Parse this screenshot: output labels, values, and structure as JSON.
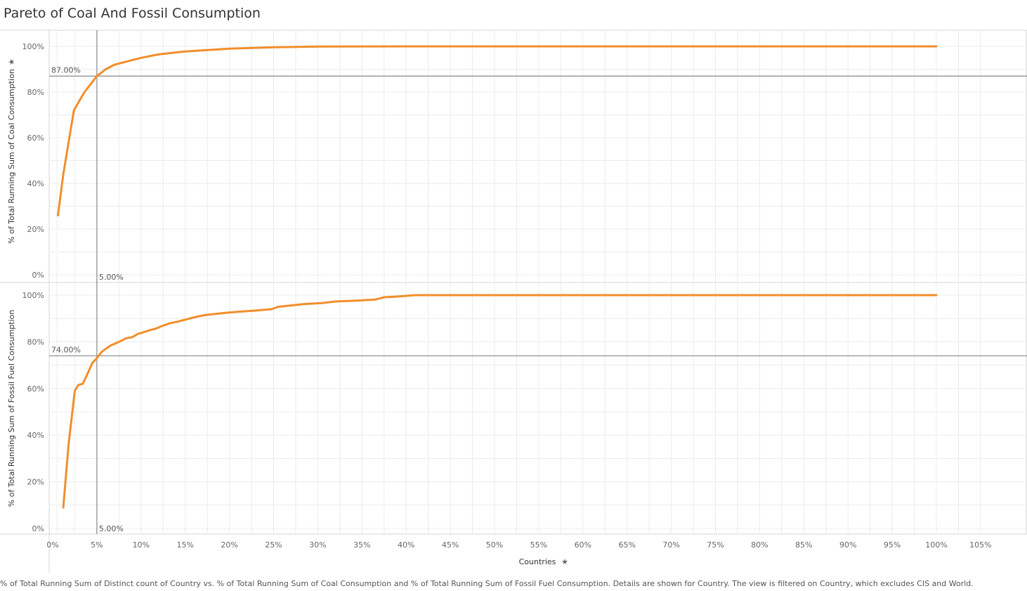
{
  "title": "Pareto of Coal And Fossil Consumption",
  "caption": "% of Total Running Sum of Distinct count of Country vs. % of Total Running Sum of Coal Consumption and % of Total Running Sum of Fossil Fuel Consumption.  Details are shown for Country. The view is filtered on Country, which excludes CIS and World.",
  "colors": {
    "line": "#F28E2B",
    "ref": "#888888",
    "grid": "#ececec",
    "axis": "#d4d4d4"
  },
  "chart_data": {
    "type": "line",
    "grid": true,
    "xlabel": "Countries",
    "xlim": [
      0,
      105
    ],
    "xticks": [
      "0%",
      "5%",
      "10%",
      "15%",
      "20%",
      "25%",
      "30%",
      "35%",
      "40%",
      "45%",
      "50%",
      "55%",
      "60%",
      "65%",
      "70%",
      "75%",
      "80%",
      "85%",
      "90%",
      "95%",
      "100%",
      "105%"
    ],
    "reference_x": {
      "value": 5,
      "label": "5.00%"
    },
    "panes": [
      {
        "ylabel": "% of Total Running Sum of Coal Consumption",
        "ylim": [
          0,
          100
        ],
        "yticks": [
          "0%",
          "20%",
          "40%",
          "60%",
          "80%",
          "100%"
        ],
        "reference_y": {
          "value": 87,
          "label": "87.00%"
        },
        "series": [
          {
            "x": [
              0.6,
              1.2,
              2.4,
              3.0,
              3.6,
              4.2,
              5.0,
              6.0,
              7.0,
              8.0,
              10.0,
              12.0,
              15.0,
              20.0,
              25.0,
              30.0,
              40.0,
              100.0
            ],
            "y": [
              26,
              44,
              72,
              76,
              80,
              83,
              87,
              90,
              92,
              93,
              95,
              96.5,
              97.8,
              99.0,
              99.6,
              99.9,
              100,
              100
            ]
          }
        ]
      },
      {
        "ylabel": "% of Total Running Sum of Fossil Fuel Consumption",
        "ylim": [
          0,
          100
        ],
        "yticks": [
          "0%",
          "20%",
          "40%",
          "60%",
          "80%",
          "100%"
        ],
        "reference_y": {
          "value": 74,
          "label": "74.00%"
        },
        "series": [
          {
            "x": [
              1.2,
              1.8,
              2.5,
              2.9,
              3.4,
              3.9,
              4.5,
              5.0,
              5.5,
              6.0,
              6.6,
              7.2,
              7.8,
              8.3,
              9.0,
              9.6,
              10.2,
              11.0,
              11.7,
              12.4,
              13.3,
              14.0,
              15.0,
              16.0,
              17.0,
              18.0,
              19.5,
              21.0,
              23.0,
              24.8,
              25.5,
              27.0,
              28.5,
              30.5,
              32.0,
              34.0,
              36.5,
              37.5,
              39.0,
              40.0,
              41.0,
              45.0,
              100.0
            ],
            "y": [
              9,
              36,
              59,
              61.5,
              62,
              66,
              71,
              73,
              75.5,
              77,
              78.5,
              79.5,
              80.5,
              81.5,
              82,
              83.3,
              84,
              85,
              85.7,
              86.8,
              88,
              88.5,
              89.5,
              90.5,
              91.3,
              91.8,
              92.4,
              92.9,
              93.4,
              94,
              95,
              95.6,
              96.2,
              96.6,
              97.3,
              97.6,
              98.1,
              99.1,
              99.4,
              99.7,
              100,
              100,
              100
            ]
          }
        ]
      }
    ]
  }
}
